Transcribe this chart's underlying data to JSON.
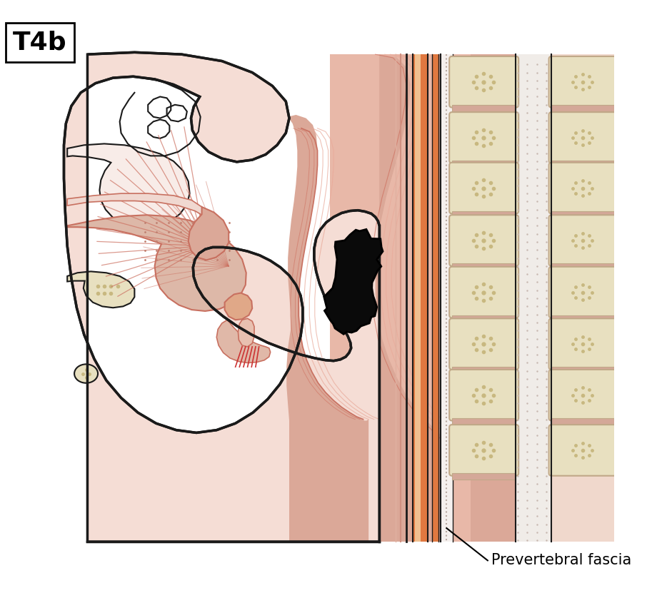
{
  "title_label": "T4b",
  "annotation_label": "Prevertebral fascia",
  "bg_color": "#ffffff",
  "skin_light": "#f5ddd5",
  "skin_medium": "#e8a898",
  "skin_dark": "#c87060",
  "outline_color": "#1a1a1a",
  "bone_color": "#e8e0c0",
  "bone_inner": "#c8b880",
  "carotid_orange": "#e07840",
  "tumor_color": "#0a0a0a",
  "line_red": "#cc5555",
  "pharynx_pink": "#d49080",
  "muscle_pink": "#e8c0b0",
  "neck_bg": "#e8b8a8"
}
